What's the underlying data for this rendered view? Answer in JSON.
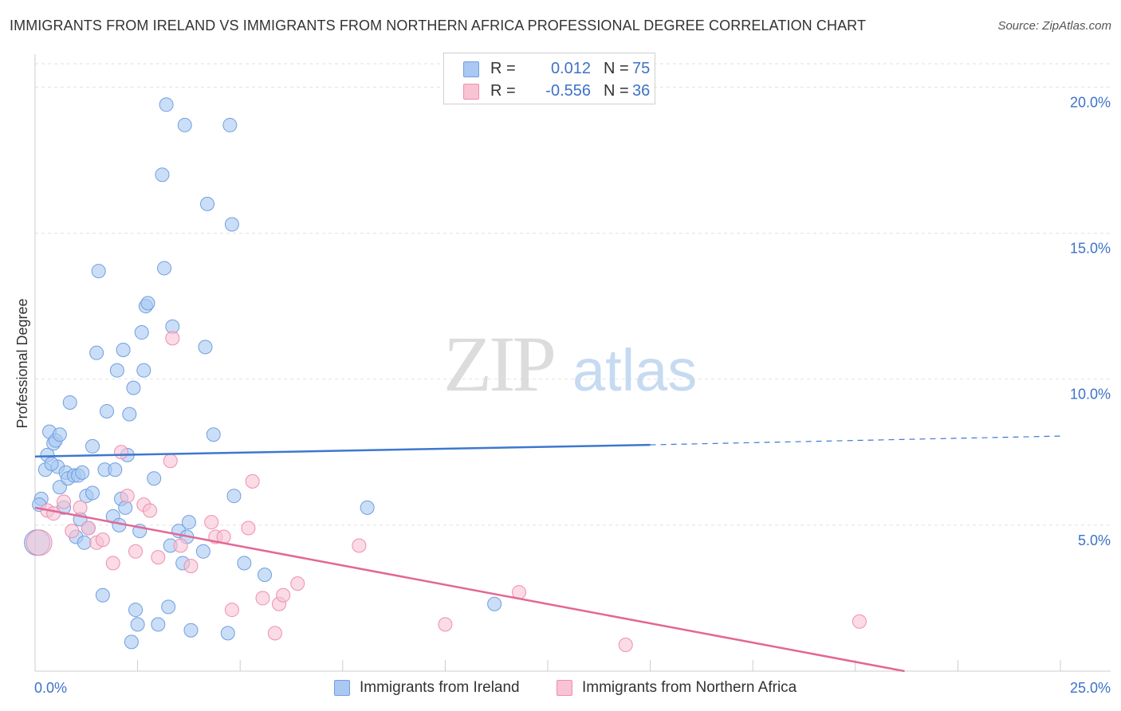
{
  "title": "IMMIGRANTS FROM IRELAND VS IMMIGRANTS FROM NORTHERN AFRICA PROFESSIONAL DEGREE CORRELATION CHART",
  "source": "Source: ZipAtlas.com",
  "watermark": {
    "zip": "ZIP",
    "atlas": "atlas"
  },
  "legend": {
    "rows": [
      {
        "r_label": "R =",
        "r_value": "0.012",
        "n_label": "N =",
        "n_value": "75",
        "color": "#a9c8f2",
        "border": "#6f9fe0"
      },
      {
        "r_label": "R =",
        "r_value": "-0.556",
        "n_label": "N =",
        "n_value": "36",
        "color": "#f8c3d3",
        "border": "#ee8fae"
      }
    ]
  },
  "bottom_legend": {
    "ireland": "Immigrants from Ireland",
    "nafrica": "Immigrants from Northern Africa"
  },
  "chart_data": {
    "type": "scatter",
    "title": "IMMIGRANTS FROM IRELAND VS IMMIGRANTS FROM NORTHERN AFRICA PROFESSIONAL DEGREE CORRELATION CHART",
    "xlabel": "",
    "ylabel": "Professional Degree",
    "xlim": [
      0,
      25
    ],
    "ylim": [
      0,
      20.8
    ],
    "x_tick_labels": {
      "min": "0.0%",
      "max": "25.0%"
    },
    "y_ticks": [
      {
        "value": 5,
        "label": "5.0%"
      },
      {
        "value": 10,
        "label": "10.0%"
      },
      {
        "value": 15,
        "label": "15.0%"
      },
      {
        "value": 20,
        "label": "20.0%"
      }
    ],
    "grid": true,
    "series": [
      {
        "name": "Immigrants from Ireland",
        "color": "#a9c8f2",
        "stroke": "#6f9fe0",
        "points": [
          [
            0.05,
            4.4
          ],
          [
            0.15,
            5.9
          ],
          [
            0.25,
            6.9
          ],
          [
            0.3,
            7.4
          ],
          [
            0.35,
            8.2
          ],
          [
            0.45,
            7.8
          ],
          [
            0.5,
            7.9
          ],
          [
            0.55,
            7.0
          ],
          [
            0.6,
            8.1
          ],
          [
            0.6,
            6.3
          ],
          [
            0.7,
            5.6
          ],
          [
            0.75,
            6.8
          ],
          [
            0.8,
            6.6
          ],
          [
            0.85,
            9.2
          ],
          [
            0.95,
            6.7
          ],
          [
            1.0,
            4.6
          ],
          [
            1.05,
            6.7
          ],
          [
            1.1,
            5.2
          ],
          [
            1.15,
            6.8
          ],
          [
            1.2,
            4.4
          ],
          [
            1.25,
            6.0
          ],
          [
            1.3,
            4.9
          ],
          [
            1.4,
            6.1
          ],
          [
            1.4,
            7.7
          ],
          [
            1.5,
            10.9
          ],
          [
            1.55,
            13.7
          ],
          [
            1.65,
            2.6
          ],
          [
            1.7,
            6.9
          ],
          [
            1.75,
            8.9
          ],
          [
            1.9,
            5.3
          ],
          [
            1.95,
            6.9
          ],
          [
            2.0,
            10.3
          ],
          [
            2.05,
            5.0
          ],
          [
            2.1,
            5.9
          ],
          [
            2.15,
            11.0
          ],
          [
            2.2,
            5.6
          ],
          [
            2.25,
            7.4
          ],
          [
            2.3,
            8.8
          ],
          [
            2.35,
            1.0
          ],
          [
            2.4,
            9.7
          ],
          [
            2.45,
            2.1
          ],
          [
            2.5,
            1.6
          ],
          [
            2.55,
            4.8
          ],
          [
            2.6,
            11.6
          ],
          [
            2.65,
            10.3
          ],
          [
            2.7,
            12.5
          ],
          [
            2.75,
            12.6
          ],
          [
            2.9,
            6.6
          ],
          [
            3.0,
            1.6
          ],
          [
            3.1,
            17.0
          ],
          [
            3.15,
            13.8
          ],
          [
            3.2,
            19.4
          ],
          [
            3.25,
            2.2
          ],
          [
            3.3,
            4.3
          ],
          [
            3.35,
            11.8
          ],
          [
            3.5,
            4.8
          ],
          [
            3.6,
            3.7
          ],
          [
            3.65,
            18.7
          ],
          [
            3.7,
            4.6
          ],
          [
            3.75,
            5.1
          ],
          [
            3.8,
            1.4
          ],
          [
            4.1,
            4.1
          ],
          [
            4.15,
            11.1
          ],
          [
            4.2,
            16.0
          ],
          [
            4.35,
            8.1
          ],
          [
            4.7,
            1.3
          ],
          [
            4.75,
            18.7
          ],
          [
            4.8,
            15.3
          ],
          [
            4.85,
            6.0
          ],
          [
            5.1,
            3.7
          ],
          [
            5.6,
            3.3
          ],
          [
            8.1,
            5.6
          ],
          [
            11.2,
            2.3
          ],
          [
            0.1,
            5.7
          ],
          [
            0.4,
            7.1
          ]
        ],
        "trend": {
          "solid": [
            [
              0,
              7.35
            ],
            [
              15,
              7.75
            ]
          ],
          "dashed": [
            [
              15,
              7.75
            ],
            [
              25,
              8.05
            ]
          ]
        }
      },
      {
        "name": "Immigrants from Northern Africa",
        "color": "#f8c3d3",
        "stroke": "#ee8fae",
        "points": [
          [
            0.1,
            4.4
          ],
          [
            0.3,
            5.5
          ],
          [
            0.45,
            5.4
          ],
          [
            0.7,
            5.8
          ],
          [
            0.9,
            4.8
          ],
          [
            1.1,
            5.6
          ],
          [
            1.3,
            4.9
          ],
          [
            1.5,
            4.4
          ],
          [
            1.65,
            4.5
          ],
          [
            1.9,
            3.7
          ],
          [
            2.1,
            7.5
          ],
          [
            2.25,
            6.0
          ],
          [
            2.45,
            4.1
          ],
          [
            2.65,
            5.7
          ],
          [
            2.8,
            5.5
          ],
          [
            3.0,
            3.9
          ],
          [
            3.3,
            7.2
          ],
          [
            3.35,
            11.4
          ],
          [
            3.55,
            4.3
          ],
          [
            3.8,
            3.6
          ],
          [
            4.3,
            5.1
          ],
          [
            4.4,
            4.6
          ],
          [
            4.6,
            4.6
          ],
          [
            4.8,
            2.1
          ],
          [
            5.2,
            4.9
          ],
          [
            5.3,
            6.5
          ],
          [
            5.55,
            2.5
          ],
          [
            5.85,
            1.3
          ],
          [
            5.95,
            2.3
          ],
          [
            6.05,
            2.6
          ],
          [
            6.4,
            3.0
          ],
          [
            7.9,
            4.3
          ],
          [
            10.0,
            1.6
          ],
          [
            11.8,
            2.7
          ],
          [
            14.4,
            0.9
          ],
          [
            20.1,
            1.7
          ]
        ],
        "trend": {
          "solid": [
            [
              0,
              5.6
            ],
            [
              21.2,
              0
            ]
          ]
        }
      }
    ]
  }
}
